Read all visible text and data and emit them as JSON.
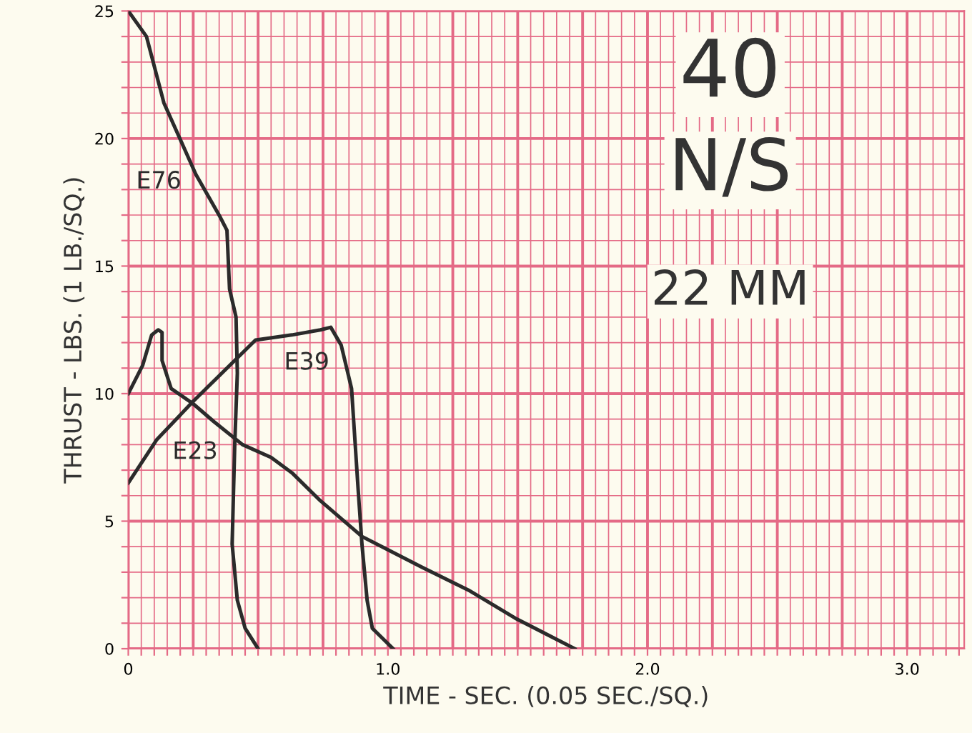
{
  "chart_data": {
    "type": "line",
    "xlabel": "TIME - SEC. (0.05 SEC./SQ.)",
    "ylabel": "THRUST - LBS. (1 LB./SQ.)",
    "xlim": [
      0,
      3.22
    ],
    "ylim": [
      0,
      25
    ],
    "xticks": [
      {
        "value": 0,
        "label": "0"
      },
      {
        "value": 0.05,
        "label": null
      },
      {
        "value": 0.1,
        "label": null
      },
      {
        "value": 0.15,
        "label": null
      },
      {
        "value": 0.2,
        "label": null
      },
      {
        "value": 0.25,
        "label": null
      },
      {
        "value": 0.3,
        "label": null
      },
      {
        "value": 0.35,
        "label": null
      },
      {
        "value": 0.4,
        "label": null
      },
      {
        "value": 0.45,
        "label": null
      },
      {
        "value": 0.5,
        "label": null
      },
      {
        "value": 0.55,
        "label": null
      },
      {
        "value": 0.6,
        "label": null
      },
      {
        "value": 0.65,
        "label": null
      },
      {
        "value": 0.7,
        "label": null
      },
      {
        "value": 0.75,
        "label": null
      },
      {
        "value": 0.8,
        "label": null
      },
      {
        "value": 0.85,
        "label": null
      },
      {
        "value": 0.9,
        "label": null
      },
      {
        "value": 0.95,
        "label": null
      },
      {
        "value": 1,
        "label": "1.0"
      },
      {
        "value": 1.05,
        "label": null
      },
      {
        "value": 1.1,
        "label": null
      },
      {
        "value": 1.15,
        "label": null
      },
      {
        "value": 1.2,
        "label": null
      },
      {
        "value": 1.25,
        "label": null
      },
      {
        "value": 1.3,
        "label": null
      },
      {
        "value": 1.35,
        "label": null
      },
      {
        "value": 1.4,
        "label": null
      },
      {
        "value": 1.45,
        "label": null
      },
      {
        "value": 1.5,
        "label": null
      },
      {
        "value": 1.55,
        "label": null
      },
      {
        "value": 1.6,
        "label": null
      },
      {
        "value": 1.65,
        "label": null
      },
      {
        "value": 1.7,
        "label": null
      },
      {
        "value": 1.75,
        "label": null
      },
      {
        "value": 1.8,
        "label": null
      },
      {
        "value": 1.85,
        "label": null
      },
      {
        "value": 1.9,
        "label": null
      },
      {
        "value": 1.95,
        "label": null
      },
      {
        "value": 2,
        "label": "2.0"
      },
      {
        "value": 2.05,
        "label": null
      },
      {
        "value": 2.1,
        "label": null
      },
      {
        "value": 2.15,
        "label": null
      },
      {
        "value": 2.2,
        "label": null
      },
      {
        "value": 2.25,
        "label": null
      },
      {
        "value": 2.3,
        "label": null
      },
      {
        "value": 2.35,
        "label": null
      },
      {
        "value": 2.4,
        "label": null
      },
      {
        "value": 2.45,
        "label": null
      },
      {
        "value": 2.5,
        "label": null
      },
      {
        "value": 2.55,
        "label": null
      },
      {
        "value": 2.6,
        "label": null
      },
      {
        "value": 2.65,
        "label": null
      },
      {
        "value": 2.7,
        "label": null
      },
      {
        "value": 2.75,
        "label": null
      },
      {
        "value": 2.8,
        "label": null
      },
      {
        "value": 2.85,
        "label": null
      },
      {
        "value": 2.9,
        "label": null
      },
      {
        "value": 2.95,
        "label": null
      },
      {
        "value": 3,
        "label": "3.0"
      },
      {
        "value": 3.05,
        "label": null
      },
      {
        "value": 3.1,
        "label": null
      },
      {
        "value": 3.15,
        "label": null
      },
      {
        "value": 3.2,
        "label": null
      }
    ],
    "yticks": [
      0,
      {
        "value": 1,
        "label": null
      },
      {
        "value": 2,
        "label": null
      },
      {
        "value": 3,
        "label": null
      },
      {
        "value": 4,
        "label": null
      },
      5,
      {
        "value": 6,
        "label": null
      },
      {
        "value": 7,
        "label": null
      },
      {
        "value": 8,
        "label": null
      },
      {
        "value": 9,
        "label": null
      },
      10,
      {
        "value": 11,
        "label": null
      },
      {
        "value": 12,
        "label": null
      },
      {
        "value": 13,
        "label": null
      },
      {
        "value": 14,
        "label": null
      },
      15,
      {
        "value": 16,
        "label": null
      },
      {
        "value": 17,
        "label": null
      },
      {
        "value": 18,
        "label": null
      },
      {
        "value": 19,
        "label": null
      },
      20,
      {
        "value": 21,
        "label": null
      },
      {
        "value": 22,
        "label": null
      },
      {
        "value": 23,
        "label": null
      },
      {
        "value": 24,
        "label": null
      },
      25
    ],
    "grid": true,
    "marker": "none",
    "line_style": "solid",
    "series": [
      {
        "name": "E76",
        "color": "#2b2b2b",
        "x": [
          0,
          0.07,
          0.137,
          0.26,
          0.355,
          0.38,
          0.39,
          0.415,
          0.42,
          0.41,
          0.4,
          0.42,
          0.45,
          0.5
        ],
        "values": [
          25,
          24.0,
          21.4,
          18.6,
          16.9,
          16.4,
          14.1,
          13.0,
          10.8,
          8.0,
          4.1,
          1.9,
          0.8,
          0
        ]
      },
      {
        "name": "E39",
        "color": "#2b2b2b",
        "x": [
          0,
          0.11,
          0.25,
          0.42,
          0.49,
          0.63,
          0.74,
          0.78,
          0.82,
          0.86,
          0.885,
          0.9,
          0.92,
          0.94,
          1.02
        ],
        "values": [
          6.5,
          8.2,
          9.7,
          11.4,
          12.1,
          12.3,
          12.5,
          12.6,
          11.9,
          10.2,
          6.3,
          4.1,
          1.9,
          0.8,
          0
        ]
      },
      {
        "name": "E23",
        "color": "#2b2b2b",
        "x": [
          0,
          0.055,
          0.09,
          0.115,
          0.13,
          0.13,
          0.165,
          0.25,
          0.33,
          0.44,
          0.55,
          0.63,
          0.74,
          0.9,
          1.13,
          1.31,
          1.49,
          1.72
        ],
        "values": [
          10.0,
          11.1,
          12.3,
          12.5,
          12.4,
          11.3,
          10.2,
          9.6,
          8.9,
          8.0,
          7.5,
          6.9,
          5.8,
          4.4,
          3.2,
          2.3,
          1.2,
          0
        ]
      }
    ],
    "annotations": [
      "40",
      "N/S",
      "22 MM"
    ]
  }
}
